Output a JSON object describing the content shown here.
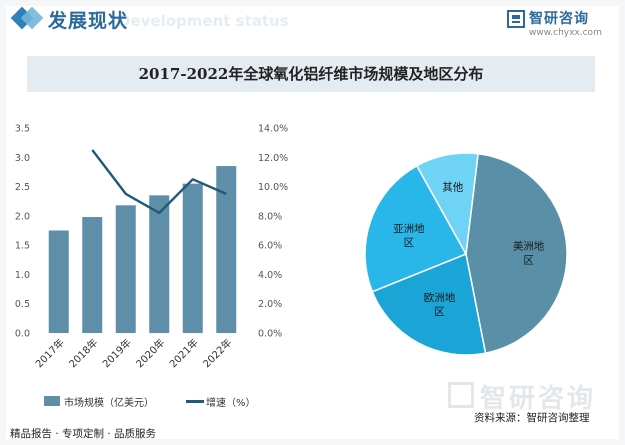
{
  "header": {
    "title": "发展现状",
    "ghost_text": "Development status"
  },
  "brand": {
    "name": "智研咨询",
    "url": "www.chyxx.com",
    "watermark": "智研咨询",
    "color": "#2a6a9c"
  },
  "footer": {
    "left": "精品报告 · 专项定制 · 品质服务",
    "source": "资料来源：智研咨询整理"
  },
  "chart_data": [
    {
      "type": "bar",
      "title": "2017-2022年全球氧化铝纤维市场规模及地区分布",
      "categories": [
        "2017年",
        "2018年",
        "2019年",
        "2020年",
        "2021年",
        "2022年"
      ],
      "series": [
        {
          "name": "市场规模（亿美元）",
          "kind": "bar",
          "axis": "left",
          "color": "#5e8ea8",
          "values": [
            1.75,
            1.98,
            2.18,
            2.35,
            2.55,
            2.85
          ]
        },
        {
          "name": "增速（%）",
          "kind": "line",
          "axis": "right",
          "color": "#1f5a7a",
          "values": [
            null,
            12.5,
            9.5,
            8.2,
            10.5,
            9.5
          ]
        }
      ],
      "y_left": {
        "lim": [
          0,
          3.5
        ],
        "ticks": [
          "0.0",
          "0.5",
          "1.0",
          "1.5",
          "2.0",
          "2.5",
          "3.0",
          "3.5"
        ]
      },
      "y_right": {
        "lim": [
          0,
          14
        ],
        "ticks": [
          "0.0%",
          "2.0%",
          "4.0%",
          "6.0%",
          "8.0%",
          "10.0%",
          "12.0%",
          "14.0%"
        ]
      },
      "grid": false,
      "legend": "bottom"
    },
    {
      "type": "pie",
      "slices": [
        {
          "label": "美洲地区",
          "value": 45,
          "color": "#5a8fa8"
        },
        {
          "label": "欧洲地区",
          "value": 22,
          "color": "#1aa5d6"
        },
        {
          "label": "亚洲地区",
          "value": 23,
          "color": "#29b6e8"
        },
        {
          "label": "其他",
          "value": 10,
          "color": "#6fd3f5"
        }
      ]
    }
  ]
}
